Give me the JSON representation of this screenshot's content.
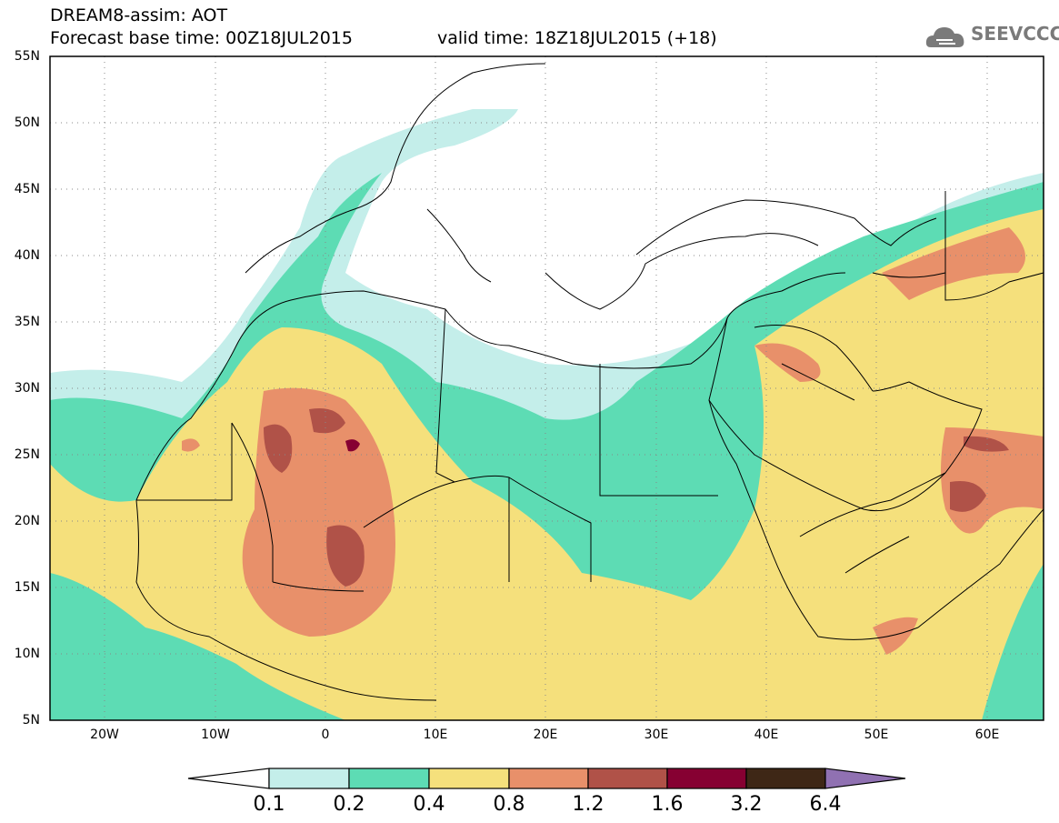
{
  "header": {
    "title": "DREAM8-assim: AOT",
    "base_time": "Forecast base time: 00Z18JUL2015",
    "valid_time": "valid time: 18Z18JUL2015 (+18)",
    "logo_text": "SEEVCCC"
  },
  "map": {
    "lat_labels": [
      "55N",
      "50N",
      "45N",
      "40N",
      "35N",
      "30N",
      "25N",
      "20N",
      "15N",
      "10N",
      "5N"
    ],
    "lon_labels": [
      "20W",
      "10W",
      "0",
      "10E",
      "20E",
      "30E",
      "40E",
      "50E",
      "60E"
    ],
    "lon_range": [
      -25,
      65
    ],
    "lat_range": [
      5,
      55
    ]
  },
  "legend": {
    "levels": [
      "0.1",
      "0.2",
      "0.4",
      "0.8",
      "1.2",
      "1.6",
      "3.2",
      "6.4"
    ],
    "colors": [
      "#ffffff",
      "#c4eeea",
      "#5ddcb4",
      "#f5e07c",
      "#e8906a",
      "#b05248",
      "#860032",
      "#3e2716",
      "#9071b2"
    ]
  },
  "colors": {
    "c01": "#c4eeea",
    "c02": "#5ddcb4",
    "c04": "#f5e07c",
    "c08": "#e8906a",
    "c12": "#b05248",
    "c16": "#860032"
  }
}
